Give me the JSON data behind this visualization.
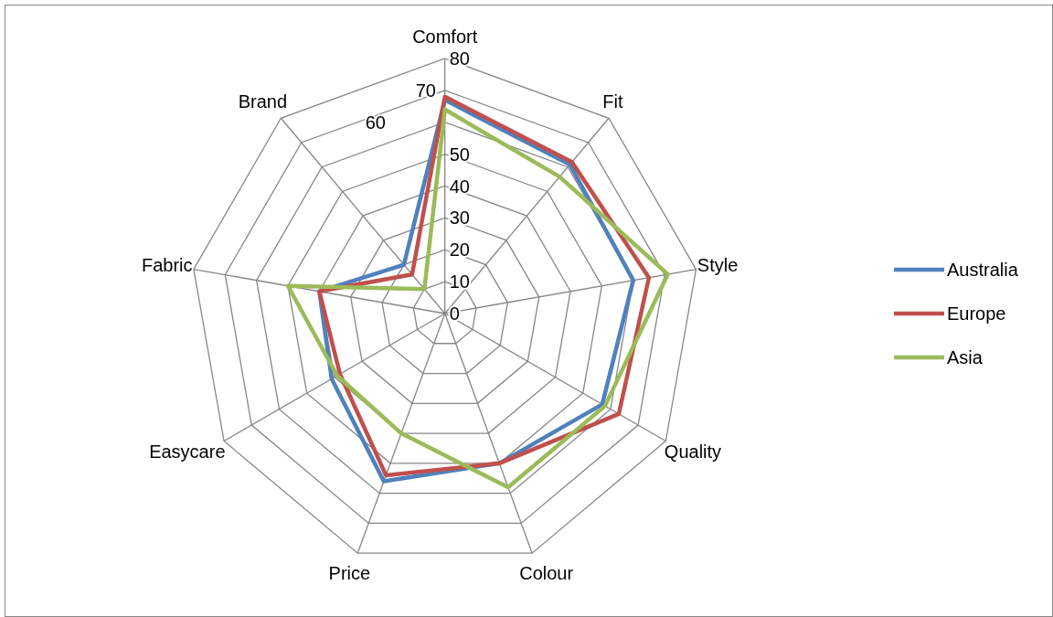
{
  "chart_data": {
    "type": "radar",
    "categories": [
      "Comfort",
      "Fit",
      "Style",
      "Quality",
      "Colour",
      "Price",
      "Easycare",
      "Fabric",
      "Brand"
    ],
    "series": [
      {
        "name": "Australia",
        "color": "#4f81bd",
        "values": [
          67,
          61,
          60,
          57,
          50,
          56,
          41,
          40,
          20
        ]
      },
      {
        "name": "Europe",
        "color": "#c0504d",
        "values": [
          68,
          62,
          65,
          63,
          50,
          54,
          38,
          40,
          16
        ]
      },
      {
        "name": "Asia",
        "color": "#9bbb59",
        "values": [
          64,
          56,
          71,
          58,
          58,
          40,
          39,
          50,
          10
        ]
      }
    ],
    "ylim": [
      0,
      80
    ],
    "yticks": [
      0,
      10,
      20,
      30,
      40,
      50,
      60,
      70,
      80
    ],
    "grid": true,
    "legend": "right",
    "marker": "none"
  }
}
